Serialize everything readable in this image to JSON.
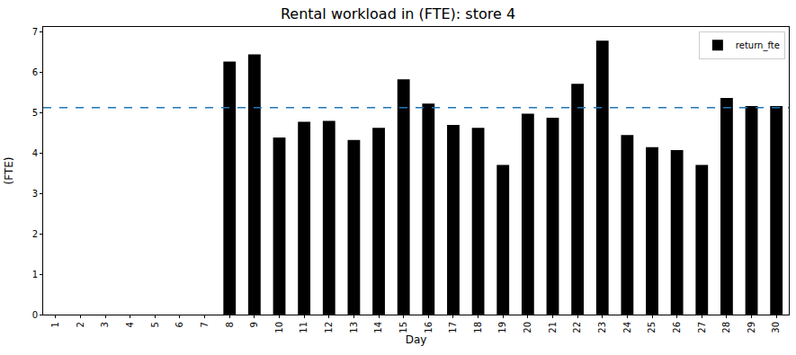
{
  "chart_data": {
    "type": "bar",
    "title": "Rental workload in (FTE): store 4",
    "x_label": "Day",
    "y_label": "(FTE)",
    "categories": [
      "1",
      "2",
      "3",
      "4",
      "5",
      "6",
      "7",
      "8",
      "9",
      "10",
      "11",
      "12",
      "13",
      "14",
      "15",
      "16",
      "17",
      "18",
      "19",
      "20",
      "21",
      "22",
      "23",
      "24",
      "25",
      "26",
      "27",
      "28",
      "29",
      "30"
    ],
    "series": [
      {
        "name": "return_fte",
        "color": "#000000",
        "values": [
          0,
          0,
          0,
          0,
          0,
          0,
          0,
          6.27,
          6.45,
          4.39,
          4.78,
          4.8,
          4.33,
          4.63,
          5.83,
          5.23,
          4.7,
          4.63,
          3.71,
          4.98,
          4.88,
          5.72,
          6.79,
          4.45,
          4.15,
          4.08,
          3.71,
          5.37,
          5.17,
          5.17
        ]
      }
    ],
    "reference_line": 5.13,
    "ylim": [
      0,
      7.13
    ],
    "yticks": [
      0,
      1,
      2,
      3,
      4,
      5,
      6,
      7
    ],
    "grid": false,
    "legend": "upper right",
    "data_labels": false
  }
}
